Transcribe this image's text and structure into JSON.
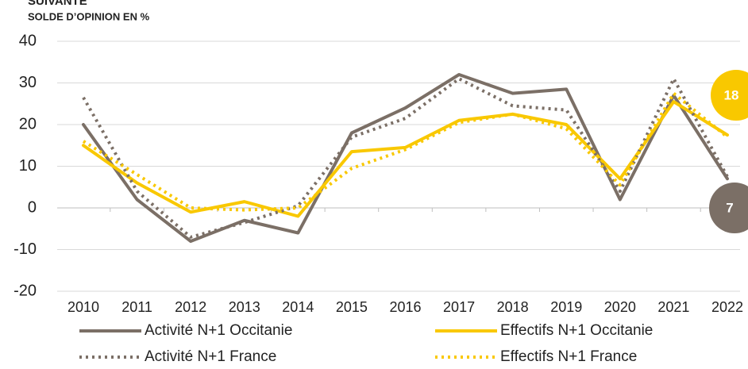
{
  "chart_data": {
    "type": "line",
    "title": "SUIVANTE",
    "subtitle": "SOLDE D’OPINION EN %",
    "categories": [
      "2010",
      "2011",
      "2012",
      "2013",
      "2014",
      "2015",
      "2016",
      "2017",
      "2018",
      "2019",
      "2020",
      "2021",
      "2022"
    ],
    "series": [
      {
        "name": "Activité N+1 Occitanie",
        "color": "#7b6f66",
        "style": "solid",
        "values": [
          20,
          2,
          -8,
          -3,
          -6,
          18,
          24,
          32,
          27.5,
          28.5,
          2,
          27,
          7
        ],
        "end_label": "7"
      },
      {
        "name": "Effectifs N+1 Occitanie",
        "color": "#f9c800",
        "style": "solid",
        "values": [
          15,
          6,
          -1,
          1.5,
          -2,
          13.5,
          14.5,
          21,
          22.5,
          20,
          7,
          25.5,
          17.5
        ],
        "end_label": "18"
      },
      {
        "name": "Activité N+1 France",
        "color": "#7b6f66",
        "style": "dotted",
        "values": [
          26.5,
          4,
          -7,
          -3.5,
          0.5,
          17,
          21.5,
          31,
          24.5,
          23.5,
          4,
          31,
          7.5
        ]
      },
      {
        "name": "Effectifs N+1 France",
        "color": "#f9c800",
        "style": "dotted",
        "values": [
          16,
          8,
          0,
          -0.5,
          0,
          9.5,
          14,
          20.5,
          22.5,
          19,
          5.5,
          27.5,
          17
        ]
      }
    ],
    "ylim": [
      -20,
      40
    ],
    "yticks": [
      -20,
      -10,
      0,
      10,
      20,
      30,
      40
    ],
    "grid": true
  }
}
